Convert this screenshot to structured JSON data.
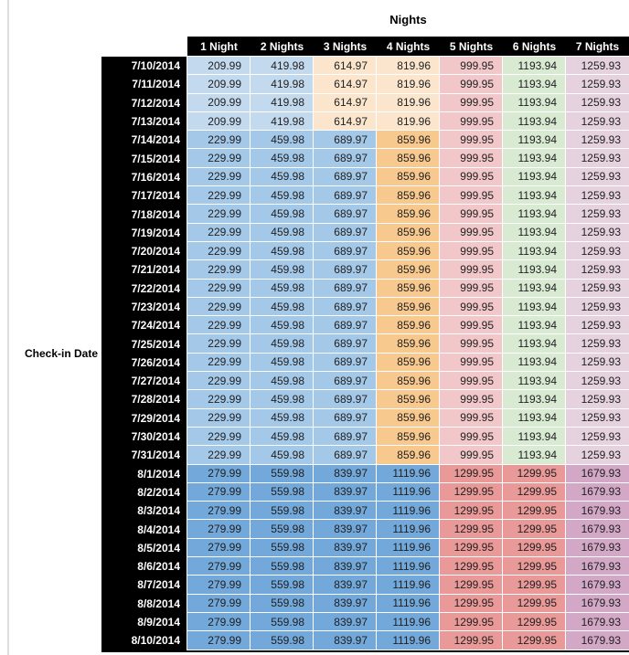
{
  "chart_data": {
    "type": "table",
    "title": "Nights",
    "row_header": "Check-in Date",
    "columns": [
      "1 Night",
      "2 Nights",
      "3 Nights",
      "4 Nights",
      "5 Nights",
      "6 Nights",
      "7 Nights"
    ],
    "rows": [
      {
        "date": "7/10/2014",
        "tier": "early_july",
        "values": [
          "209.99",
          "419.98",
          "614.97",
          "819.96",
          "999.95",
          "1193.94",
          "1259.93"
        ]
      },
      {
        "date": "7/11/2014",
        "tier": "early_july",
        "values": [
          "209.99",
          "419.98",
          "614.97",
          "819.96",
          "999.95",
          "1193.94",
          "1259.93"
        ]
      },
      {
        "date": "7/12/2014",
        "tier": "early_july",
        "values": [
          "209.99",
          "419.98",
          "614.97",
          "819.96",
          "999.95",
          "1193.94",
          "1259.93"
        ]
      },
      {
        "date": "7/13/2014",
        "tier": "early_july",
        "values": [
          "209.99",
          "419.98",
          "614.97",
          "819.96",
          "999.95",
          "1193.94",
          "1259.93"
        ]
      },
      {
        "date": "7/14/2014",
        "tier": "mid_july",
        "values": [
          "229.99",
          "459.98",
          "689.97",
          "859.96",
          "999.95",
          "1193.94",
          "1259.93"
        ]
      },
      {
        "date": "7/15/2014",
        "tier": "mid_july",
        "values": [
          "229.99",
          "459.98",
          "689.97",
          "859.96",
          "999.95",
          "1193.94",
          "1259.93"
        ]
      },
      {
        "date": "7/16/2014",
        "tier": "mid_july",
        "values": [
          "229.99",
          "459.98",
          "689.97",
          "859.96",
          "999.95",
          "1193.94",
          "1259.93"
        ]
      },
      {
        "date": "7/17/2014",
        "tier": "mid_july",
        "values": [
          "229.99",
          "459.98",
          "689.97",
          "859.96",
          "999.95",
          "1193.94",
          "1259.93"
        ]
      },
      {
        "date": "7/18/2014",
        "tier": "mid_july",
        "values": [
          "229.99",
          "459.98",
          "689.97",
          "859.96",
          "999.95",
          "1193.94",
          "1259.93"
        ]
      },
      {
        "date": "7/19/2014",
        "tier": "mid_july",
        "values": [
          "229.99",
          "459.98",
          "689.97",
          "859.96",
          "999.95",
          "1193.94",
          "1259.93"
        ]
      },
      {
        "date": "7/20/2014",
        "tier": "mid_july",
        "values": [
          "229.99",
          "459.98",
          "689.97",
          "859.96",
          "999.95",
          "1193.94",
          "1259.93"
        ]
      },
      {
        "date": "7/21/2014",
        "tier": "mid_july",
        "values": [
          "229.99",
          "459.98",
          "689.97",
          "859.96",
          "999.95",
          "1193.94",
          "1259.93"
        ]
      },
      {
        "date": "7/22/2014",
        "tier": "mid_july",
        "values": [
          "229.99",
          "459.98",
          "689.97",
          "859.96",
          "999.95",
          "1193.94",
          "1259.93"
        ]
      },
      {
        "date": "7/23/2014",
        "tier": "mid_july",
        "values": [
          "229.99",
          "459.98",
          "689.97",
          "859.96",
          "999.95",
          "1193.94",
          "1259.93"
        ]
      },
      {
        "date": "7/24/2014",
        "tier": "mid_july",
        "values": [
          "229.99",
          "459.98",
          "689.97",
          "859.96",
          "999.95",
          "1193.94",
          "1259.93"
        ]
      },
      {
        "date": "7/25/2014",
        "tier": "mid_july",
        "values": [
          "229.99",
          "459.98",
          "689.97",
          "859.96",
          "999.95",
          "1193.94",
          "1259.93"
        ]
      },
      {
        "date": "7/26/2014",
        "tier": "mid_july",
        "values": [
          "229.99",
          "459.98",
          "689.97",
          "859.96",
          "999.95",
          "1193.94",
          "1259.93"
        ]
      },
      {
        "date": "7/27/2014",
        "tier": "mid_july",
        "values": [
          "229.99",
          "459.98",
          "689.97",
          "859.96",
          "999.95",
          "1193.94",
          "1259.93"
        ]
      },
      {
        "date": "7/28/2014",
        "tier": "mid_july",
        "values": [
          "229.99",
          "459.98",
          "689.97",
          "859.96",
          "999.95",
          "1193.94",
          "1259.93"
        ]
      },
      {
        "date": "7/29/2014",
        "tier": "mid_july",
        "values": [
          "229.99",
          "459.98",
          "689.97",
          "859.96",
          "999.95",
          "1193.94",
          "1259.93"
        ]
      },
      {
        "date": "7/30/2014",
        "tier": "mid_july",
        "values": [
          "229.99",
          "459.98",
          "689.97",
          "859.96",
          "999.95",
          "1193.94",
          "1259.93"
        ]
      },
      {
        "date": "7/31/2014",
        "tier": "mid_july",
        "values": [
          "229.99",
          "459.98",
          "689.97",
          "859.96",
          "999.95",
          "1193.94",
          "1259.93"
        ]
      },
      {
        "date": "8/1/2014",
        "tier": "august",
        "values": [
          "279.99",
          "559.98",
          "839.97",
          "1119.96",
          "1299.95",
          "1299.95",
          "1679.93"
        ]
      },
      {
        "date": "8/2/2014",
        "tier": "august",
        "values": [
          "279.99",
          "559.98",
          "839.97",
          "1119.96",
          "1299.95",
          "1299.95",
          "1679.93"
        ]
      },
      {
        "date": "8/3/2014",
        "tier": "august",
        "values": [
          "279.99",
          "559.98",
          "839.97",
          "1119.96",
          "1299.95",
          "1299.95",
          "1679.93"
        ]
      },
      {
        "date": "8/4/2014",
        "tier": "august",
        "values": [
          "279.99",
          "559.98",
          "839.97",
          "1119.96",
          "1299.95",
          "1299.95",
          "1679.93"
        ]
      },
      {
        "date": "8/5/2014",
        "tier": "august",
        "values": [
          "279.99",
          "559.98",
          "839.97",
          "1119.96",
          "1299.95",
          "1299.95",
          "1679.93"
        ]
      },
      {
        "date": "8/6/2014",
        "tier": "august",
        "values": [
          "279.99",
          "559.98",
          "839.97",
          "1119.96",
          "1299.95",
          "1299.95",
          "1679.93"
        ]
      },
      {
        "date": "8/7/2014",
        "tier": "august",
        "values": [
          "279.99",
          "559.98",
          "839.97",
          "1119.96",
          "1299.95",
          "1299.95",
          "1679.93"
        ]
      },
      {
        "date": "8/8/2014",
        "tier": "august",
        "values": [
          "279.99",
          "559.98",
          "839.97",
          "1119.96",
          "1299.95",
          "1299.95",
          "1679.93"
        ]
      },
      {
        "date": "8/9/2014",
        "tier": "august",
        "values": [
          "279.99",
          "559.98",
          "839.97",
          "1119.96",
          "1299.95",
          "1299.95",
          "1679.93"
        ]
      },
      {
        "date": "8/10/2014",
        "tier": "august",
        "values": [
          "279.99",
          "559.98",
          "839.97",
          "1119.96",
          "1299.95",
          "1299.95",
          "1679.93"
        ]
      }
    ]
  },
  "colors": {
    "page_bg": "#FFFFFF",
    "header_bg": "#000000",
    "header_text": "#FFFFFF",
    "value_text": "#1F1F1F",
    "grid_line": "#FFFFFF",
    "left_edge_line": "#DDDDDD",
    "tiers": {
      "early_july": [
        "#C3D9EE",
        "#C3D9EE",
        "#FBE6CD",
        "#FBE6CD",
        "#F1C7C9",
        "#D9EAD3",
        "#E5D2DE"
      ],
      "mid_july": [
        "#A4C8E8",
        "#A4C8E8",
        "#A4C8E8",
        "#F8C98E",
        "#F1C7C9",
        "#D9EAD3",
        "#E5D2DE"
      ],
      "august": [
        "#73A8DA",
        "#73A8DA",
        "#73A8DA",
        "#73A8DA",
        "#EA9999",
        "#EA9999",
        "#D2A8C6"
      ]
    }
  }
}
